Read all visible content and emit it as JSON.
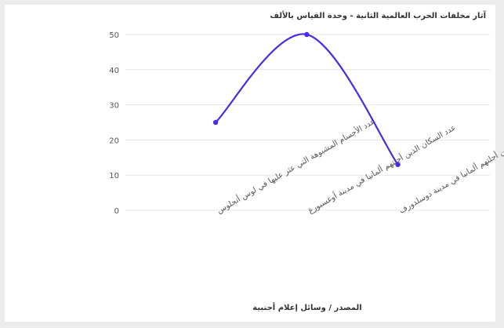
{
  "chart_data": {
    "type": "line",
    "title": "آثار مخلفات الحرب العالمية الثانية - وحدة القياس بالألف",
    "xlabel": "المصدر / وسائل إعلام أجنبية",
    "ylabel": "",
    "categories": [
      "عدد الأجسام المشبوهة التي عثر عليها في لوس أنجلوس",
      "عدد السكان الذين أجلتهم ألمانيا في مدينة أوغسبورغ",
      "عدد السكان الذين أجلتهم ألمانيا في مدينة دوسلدورف"
    ],
    "series": [
      {
        "values": [
          25,
          50,
          13
        ]
      }
    ],
    "ylim": [
      0,
      50
    ],
    "yticks": [
      0,
      10,
      20,
      30,
      40,
      50
    ],
    "smooth": true,
    "grid": true,
    "legend": "none",
    "colors": {
      "line": "#4a2be6",
      "grid": "#e6e6e6",
      "text": "#555555"
    }
  }
}
